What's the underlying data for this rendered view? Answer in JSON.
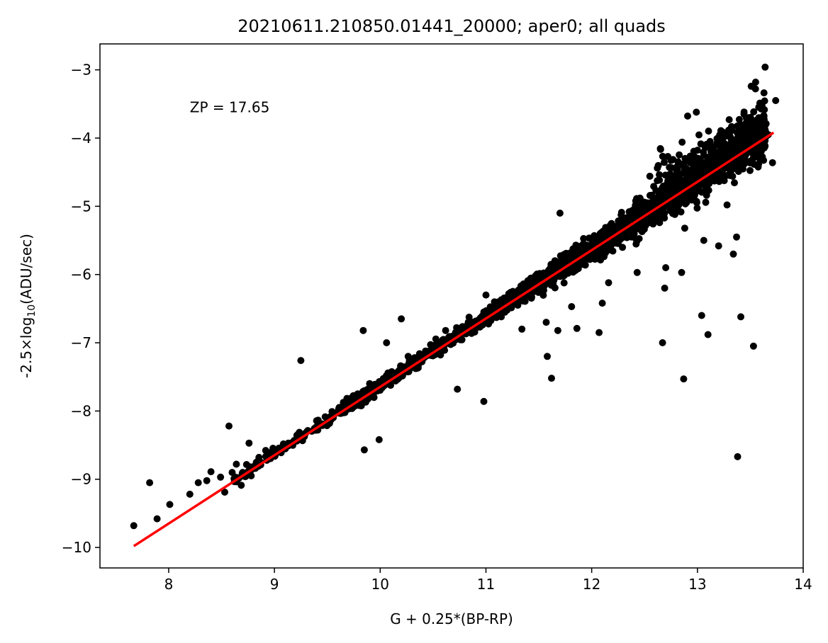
{
  "chart_data": {
    "type": "scatter",
    "title": "20210611.210850.01441_20000; aper0; all quads",
    "xlabel": "G + 0.25*(BP-RP)",
    "ylabel_prefix": "-2.5×log",
    "ylabel_sub": "10",
    "ylabel_suffix": "(ADU/sec)",
    "xlim": [
      7.35,
      14.0
    ],
    "ylim": [
      -10.3,
      -2.62
    ],
    "xticks": [
      8,
      9,
      10,
      11,
      12,
      13,
      14
    ],
    "yticks": [
      -10,
      -9,
      -8,
      -7,
      -6,
      -5,
      -4,
      -3
    ],
    "xtick_labels": [
      "8",
      "9",
      "10",
      "11",
      "12",
      "13",
      "14"
    ],
    "ytick_labels": [
      "−10",
      "−9",
      "−8",
      "−7",
      "−6",
      "−5",
      "−4",
      "−3"
    ],
    "annotation": {
      "text": "ZP = 17.65",
      "x": 8.2,
      "y": -3.55,
      "color": "#ff0000"
    },
    "fit_line": {
      "x": [
        7.67,
        13.72
      ],
      "y": [
        -9.98,
        -3.92
      ],
      "color": "#ff0000"
    },
    "marker_color": "#000000",
    "zero_point": 17.65,
    "outliers": [
      [
        7.67,
        -9.68
      ],
      [
        7.82,
        -9.05
      ],
      [
        7.89,
        -9.58
      ],
      [
        8.01,
        -9.37
      ],
      [
        8.2,
        -9.22
      ],
      [
        8.28,
        -9.05
      ],
      [
        8.36,
        -9.02
      ],
      [
        8.4,
        -8.89
      ],
      [
        8.49,
        -8.97
      ],
      [
        8.53,
        -9.19
      ],
      [
        8.57,
        -8.22
      ],
      [
        8.6,
        -8.9
      ],
      [
        8.64,
        -8.78
      ],
      [
        8.7,
        -8.9
      ],
      [
        8.72,
        -8.96
      ],
      [
        8.76,
        -8.47
      ],
      [
        8.78,
        -8.95
      ],
      [
        9.25,
        -7.26
      ],
      [
        9.84,
        -6.82
      ],
      [
        9.85,
        -8.57
      ],
      [
        9.99,
        -8.42
      ],
      [
        10.06,
        -7.0
      ],
      [
        10.2,
        -6.65
      ],
      [
        10.73,
        -7.68
      ],
      [
        10.98,
        -7.86
      ],
      [
        11.0,
        -6.3
      ],
      [
        11.34,
        -6.8
      ],
      [
        11.57,
        -6.7
      ],
      [
        11.58,
        -7.2
      ],
      [
        11.62,
        -7.52
      ],
      [
        11.68,
        -6.82
      ],
      [
        11.7,
        -5.1
      ],
      [
        11.81,
        -6.47
      ],
      [
        11.86,
        -6.79
      ],
      [
        12.07,
        -6.85
      ],
      [
        12.1,
        -6.42
      ],
      [
        12.16,
        -6.12
      ],
      [
        12.43,
        -5.97
      ],
      [
        12.55,
        -4.56
      ],
      [
        12.67,
        -7.0
      ],
      [
        12.69,
        -6.2
      ],
      [
        12.7,
        -5.9
      ],
      [
        12.72,
        -4.27
      ],
      [
        12.85,
        -5.97
      ],
      [
        12.87,
        -7.53
      ],
      [
        12.88,
        -5.32
      ],
      [
        12.99,
        -3.62
      ],
      [
        13.04,
        -6.6
      ],
      [
        13.06,
        -5.5
      ],
      [
        13.1,
        -6.88
      ],
      [
        13.2,
        -5.58
      ],
      [
        13.28,
        -4.98
      ],
      [
        13.34,
        -5.7
      ],
      [
        13.37,
        -5.45
      ],
      [
        13.38,
        -8.67
      ],
      [
        13.41,
        -6.62
      ],
      [
        13.53,
        -7.05
      ],
      [
        13.55,
        -3.18
      ],
      [
        13.64,
        -2.96
      ],
      [
        13.71,
        -4.36
      ],
      [
        13.74,
        -3.45
      ],
      [
        13.67,
        -3.95
      ],
      [
        13.58,
        -3.88
      ],
      [
        13.44,
        -3.65
      ],
      [
        13.3,
        -3.73
      ],
      [
        13.55,
        -3.78
      ],
      [
        13.25,
        -3.95
      ],
      [
        13.12,
        -4.05
      ]
    ]
  }
}
